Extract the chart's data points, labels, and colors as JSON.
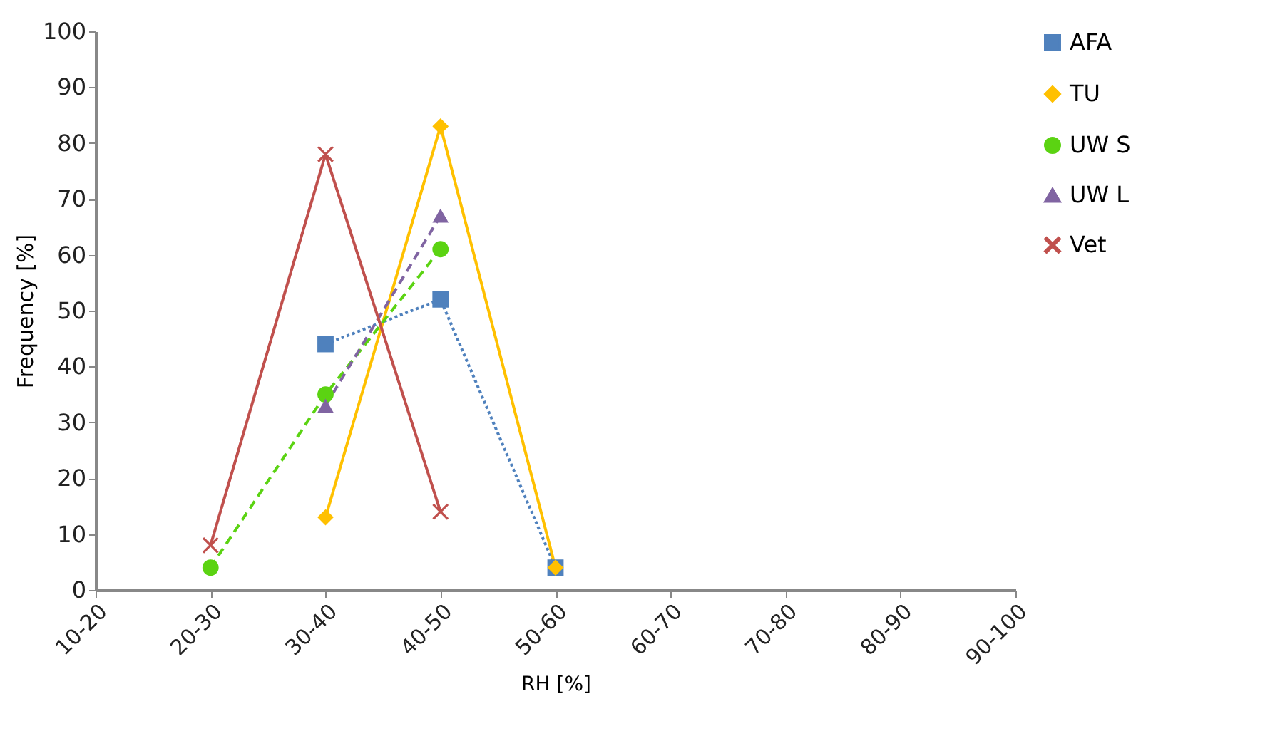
{
  "chart_data": {
    "type": "line",
    "xlabel": "RH [%]",
    "ylabel": "Frequency [%]",
    "categories": [
      "10-20",
      "20-30",
      "30-40",
      "40-50",
      "50-60",
      "60-70",
      "70-80",
      "80-90",
      "90-100"
    ],
    "ylim": [
      0,
      100
    ],
    "yticks": [
      0,
      10,
      20,
      30,
      40,
      50,
      60,
      70,
      80,
      90,
      100
    ],
    "grid": false,
    "legend": "right",
    "series": [
      {
        "name": "AFA",
        "color": "#4f81bd",
        "marker": "square",
        "line_style": "dotted",
        "values": [
          null,
          null,
          44,
          52,
          4,
          null,
          null,
          null,
          null
        ]
      },
      {
        "name": "TU",
        "color": "#ffc000",
        "marker": "diamond",
        "line_style": "solid",
        "values": [
          null,
          null,
          13,
          83,
          4,
          null,
          null,
          null,
          null
        ]
      },
      {
        "name": "UW S",
        "color": "#5bd312",
        "marker": "circle",
        "line_style": "dashed",
        "values": [
          null,
          4,
          35,
          61,
          null,
          null,
          null,
          null,
          null
        ]
      },
      {
        "name": "UW L",
        "color": "#8064a2",
        "marker": "triangle",
        "line_style": "dashed",
        "values": [
          null,
          null,
          33,
          67,
          null,
          null,
          null,
          null,
          null
        ]
      },
      {
        "name": "Vet",
        "color": "#c0504d",
        "marker": "cross",
        "line_style": "solid",
        "values": [
          null,
          8,
          78,
          14,
          null,
          null,
          null,
          null,
          null
        ]
      }
    ]
  }
}
